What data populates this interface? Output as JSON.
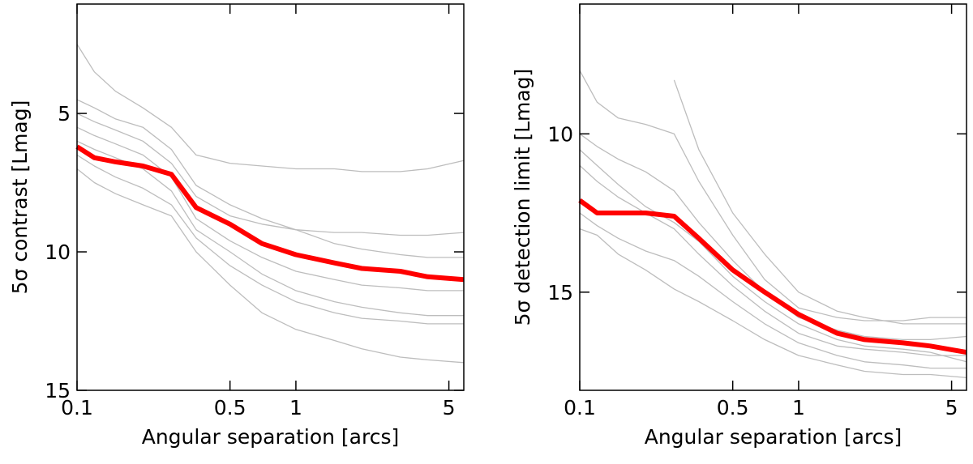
{
  "chart_data": [
    {
      "type": "line",
      "xlabel": "Angular separation [arcs]",
      "ylabel": "5σ contrast [Lmag]",
      "log_x": true,
      "xlim": [
        0.1,
        5.85
      ],
      "xticks": [
        0.1,
        0.5,
        1,
        5
      ],
      "ylim": [
        15,
        1.05
      ],
      "yticks": [
        5,
        10,
        15
      ],
      "x": [
        0.1,
        0.12,
        0.15,
        0.2,
        0.27,
        0.35,
        0.5,
        0.7,
        1,
        1.5,
        2,
        3,
        4,
        5.85
      ],
      "series": [
        {
          "color": "#bdbdbd",
          "values": [
            2.5,
            3.5,
            4.2,
            4.8,
            5.5,
            6.5,
            6.8,
            6.9,
            7.0,
            7.0,
            7.1,
            7.1,
            7.0,
            6.7
          ]
        },
        {
          "color": "#bdbdbd",
          "values": [
            5.0,
            5.3,
            5.6,
            6.0,
            6.8,
            8.0,
            8.7,
            9.0,
            9.2,
            9.3,
            9.3,
            9.4,
            9.4,
            9.3
          ]
        },
        {
          "color": "#bdbdbd",
          "values": [
            5.5,
            5.8,
            6.1,
            6.5,
            7.3,
            8.8,
            9.6,
            10.2,
            10.7,
            11.0,
            11.2,
            11.3,
            11.4,
            11.4
          ]
        },
        {
          "color": "#bdbdbd",
          "values": [
            6.5,
            6.9,
            7.3,
            7.7,
            8.3,
            9.5,
            10.5,
            11.2,
            11.8,
            12.2,
            12.4,
            12.5,
            12.6,
            12.6
          ]
        },
        {
          "color": "#bdbdbd",
          "values": [
            7.0,
            7.5,
            7.9,
            8.3,
            8.7,
            10.0,
            11.2,
            12.2,
            12.8,
            13.2,
            13.5,
            13.8,
            13.9,
            14.0
          ]
        },
        {
          "color": "#bdbdbd",
          "values": [
            4.5,
            4.8,
            5.2,
            5.5,
            6.3,
            7.6,
            8.3,
            8.8,
            9.2,
            9.7,
            9.9,
            10.1,
            10.2,
            10.2
          ]
        },
        {
          "color": "#bdbdbd",
          "values": [
            6.0,
            6.3,
            6.6,
            7.0,
            7.8,
            9.2,
            10.0,
            10.8,
            11.4,
            11.8,
            12.0,
            12.2,
            12.3,
            12.3
          ]
        },
        {
          "color": "#ff0000",
          "values": [
            6.2,
            6.6,
            6.75,
            6.9,
            7.2,
            8.4,
            9.0,
            9.7,
            10.1,
            10.4,
            10.6,
            10.7,
            10.9,
            11.0
          ]
        }
      ]
    },
    {
      "type": "line",
      "xlabel": "Angular separation [arcs]",
      "ylabel": "5σ detection limit [Lmag]",
      "log_x": true,
      "xlim": [
        0.1,
        5.85
      ],
      "xticks": [
        0.1,
        0.5,
        1,
        5
      ],
      "ylim": [
        18.1,
        5.9
      ],
      "yticks": [
        10,
        15
      ],
      "x": [
        0.1,
        0.12,
        0.15,
        0.2,
        0.27,
        0.35,
        0.5,
        0.7,
        1,
        1.5,
        2,
        3,
        4,
        5.85
      ],
      "series": [
        {
          "color": "#bdbdbd",
          "values": [
            8.0,
            9.0,
            9.5,
            9.7,
            10.0,
            11.5,
            13.2,
            14.6,
            15.5,
            15.8,
            15.9,
            15.9,
            15.8,
            15.8
          ]
        },
        {
          "color": "#bdbdbd",
          "values": [
            10.0,
            10.4,
            10.8,
            11.2,
            11.8,
            12.8,
            14.0,
            15.0,
            15.8,
            16.2,
            16.4,
            16.5,
            16.5,
            16.4
          ]
        },
        {
          "color": "#bdbdbd",
          "values": [
            11.0,
            11.5,
            12.0,
            12.5,
            13.0,
            13.8,
            14.8,
            15.6,
            16.3,
            16.7,
            16.8,
            16.9,
            17.0,
            17.0
          ]
        },
        {
          "color": "#bdbdbd",
          "values": [
            12.5,
            12.9,
            13.3,
            13.7,
            14.0,
            14.5,
            15.3,
            16.0,
            16.6,
            17.0,
            17.2,
            17.3,
            17.4,
            17.4
          ]
        },
        {
          "color": "#bdbdbd",
          "values": [
            10.5,
            11.0,
            11.6,
            12.3,
            12.8,
            13.4,
            14.5,
            15.3,
            16.0,
            16.5,
            16.7,
            16.8,
            16.9,
            17.2
          ]
        },
        {
          "color": "#bdbdbd",
          "values": [
            13.0,
            13.2,
            13.8,
            14.3,
            14.9,
            15.3,
            15.9,
            16.5,
            17.0,
            17.3,
            17.5,
            17.6,
            17.6,
            17.7
          ]
        },
        {
          "color": "#bdbdbd",
          "values": [
            null,
            null,
            null,
            null,
            8.3,
            10.5,
            12.5,
            13.8,
            15.0,
            15.6,
            15.8,
            16.0,
            16.0,
            16.0
          ]
        },
        {
          "color": "#ff0000",
          "values": [
            12.1,
            12.5,
            12.5,
            12.5,
            12.6,
            13.3,
            14.3,
            15.0,
            15.7,
            16.3,
            16.5,
            16.6,
            16.7,
            16.9
          ]
        }
      ]
    }
  ]
}
